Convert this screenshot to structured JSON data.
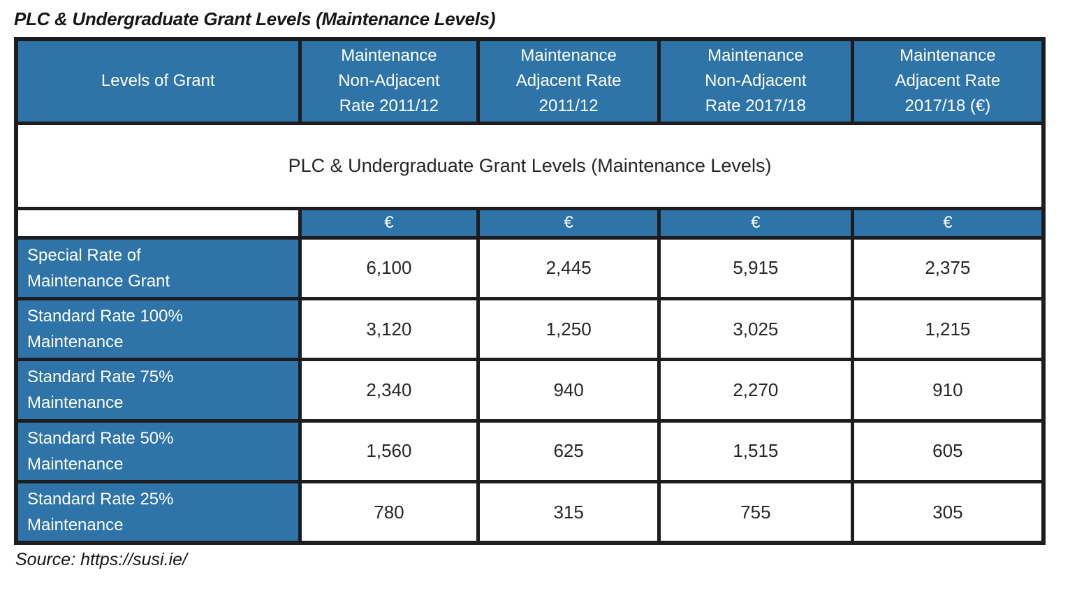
{
  "page": {
    "title": "PLC & Undergraduate Grant Levels (Maintenance Levels)",
    "source": "Source: https://susi.ie/"
  },
  "table": {
    "header": {
      "col0": "Levels of Grant",
      "cols": [
        "Maintenance\nNon-Adjacent\nRate 2011/12",
        "Maintenance\nAdjacent Rate\n2011/12",
        "Maintenance\nNon-Adjacent\nRate 2017/18",
        "Maintenance\nAdjacent Rate\n2017/18 (€)"
      ]
    },
    "merged_caption": "PLC & Undergraduate Grant Levels (Maintenance Levels)",
    "currency_row": [
      "€",
      "€",
      "€",
      "€"
    ],
    "rows": [
      {
        "label": "Special Rate of\nMaintenance Grant",
        "values": [
          "6,100",
          "2,445",
          "5,915",
          "2,375"
        ]
      },
      {
        "label": "Standard Rate 100%\nMaintenance",
        "values": [
          "3,120",
          "1,250",
          "3,025",
          "1,215"
        ]
      },
      {
        "label": "Standard Rate 75%\nMaintenance",
        "values": [
          "2,340",
          "940",
          "2,270",
          "910"
        ]
      },
      {
        "label": "Standard Rate 50%\nMaintenance",
        "values": [
          "1,560",
          "625",
          "1,515",
          "605"
        ]
      },
      {
        "label": "Standard Rate 25%\nMaintenance",
        "values": [
          "780",
          "315",
          "755",
          "305"
        ]
      }
    ],
    "colors": {
      "header_bg": "#2e74a8",
      "border": "#1d1d1f",
      "header_text": "#ffffff",
      "body_text": "#262626"
    }
  },
  "chart_data": {
    "type": "table",
    "title": "PLC & Undergraduate Grant Levels (Maintenance Levels)",
    "columns": [
      "Levels of Grant",
      "Maintenance Non-Adjacent Rate 2011/12 (€)",
      "Maintenance Adjacent Rate 2011/12 (€)",
      "Maintenance Non-Adjacent Rate 2017/18 (€)",
      "Maintenance Adjacent Rate 2017/18 (€)"
    ],
    "rows": [
      [
        "Special Rate of Maintenance Grant",
        6100,
        2445,
        5915,
        2375
      ],
      [
        "Standard Rate 100% Maintenance",
        3120,
        1250,
        3025,
        1215
      ],
      [
        "Standard Rate 75% Maintenance",
        2340,
        940,
        2270,
        910
      ],
      [
        "Standard Rate 50% Maintenance",
        1560,
        625,
        1515,
        605
      ],
      [
        "Standard Rate 25% Maintenance",
        780,
        315,
        755,
        305
      ]
    ],
    "source": "https://susi.ie/"
  }
}
